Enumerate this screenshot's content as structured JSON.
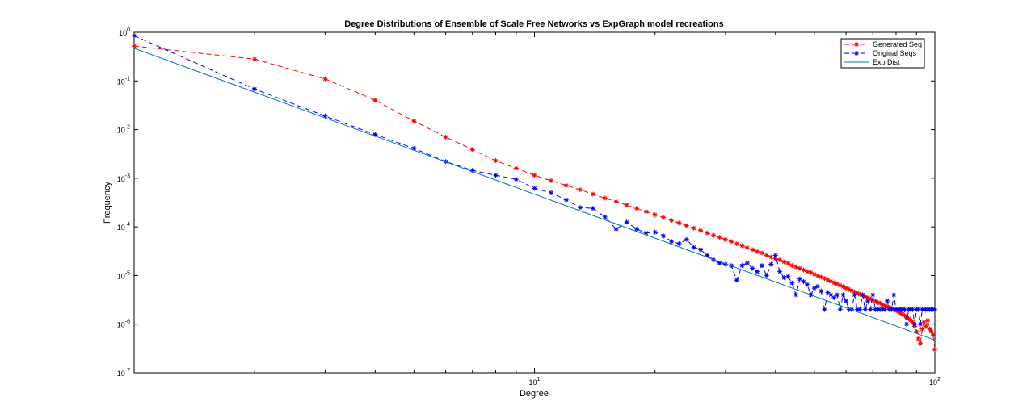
{
  "chart_data": {
    "type": "line",
    "title": "Degree Distributions of Ensemble of Scale Free Networks vs ExpGraph model recreations",
    "xlabel": "Degree",
    "ylabel": "Frequency",
    "xscale": "log",
    "yscale": "log",
    "xlim": [
      1,
      100
    ],
    "ylim": [
      1e-07,
      1
    ],
    "x_ticks": [
      {
        "value": 10,
        "base": "10",
        "exp": "1"
      },
      {
        "value": 100,
        "base": "10",
        "exp": "2"
      }
    ],
    "y_ticks": [
      {
        "value": 1,
        "base": "10",
        "exp": "0"
      },
      {
        "value": 0.1,
        "base": "10",
        "exp": "-1"
      },
      {
        "value": 0.01,
        "base": "10",
        "exp": "-2"
      },
      {
        "value": 0.001,
        "base": "10",
        "exp": "-3"
      },
      {
        "value": 0.0001,
        "base": "10",
        "exp": "-4"
      },
      {
        "value": 1e-05,
        "base": "10",
        "exp": "-5"
      },
      {
        "value": 1e-06,
        "base": "10",
        "exp": "-6"
      },
      {
        "value": 1e-07,
        "base": "10",
        "exp": "-7"
      }
    ],
    "grid": false,
    "legend_position": "top-right",
    "series": [
      {
        "name": "Generated Seq",
        "color": "#ff0000",
        "line": "dashed",
        "marker": "asterisk",
        "points": [
          [
            1,
            0.52
          ],
          [
            2,
            0.28
          ],
          [
            3,
            0.11
          ],
          [
            4,
            0.04
          ],
          [
            5,
            0.015
          ],
          [
            6,
            0.007
          ],
          [
            7,
            0.0039
          ],
          [
            8,
            0.0023
          ],
          [
            9,
            0.0016
          ],
          [
            10,
            0.00115
          ],
          [
            11,
            0.00089
          ],
          [
            12,
            0.00071
          ],
          [
            13,
            0.00058
          ],
          [
            14,
            0.00047
          ],
          [
            15,
            0.00039
          ],
          [
            16,
            0.00033
          ],
          [
            17,
            0.00028
          ],
          [
            18,
            0.00024
          ],
          [
            19,
            0.000205
          ],
          [
            20,
            0.000178
          ],
          [
            21,
            0.000155
          ],
          [
            22,
            0.000136
          ],
          [
            23,
            0.00012
          ],
          [
            24,
            0.000106
          ],
          [
            25,
            9.4e-05
          ],
          [
            26,
            8.4e-05
          ],
          [
            27,
            7.5e-05
          ],
          [
            28,
            6.7e-05
          ],
          [
            29,
            6.1e-05
          ],
          [
            30,
            5.5e-05
          ],
          [
            31,
            5e-05
          ],
          [
            32,
            4.5e-05
          ],
          [
            33,
            4.1e-05
          ],
          [
            34,
            3.7e-05
          ],
          [
            35,
            3.4e-05
          ],
          [
            36,
            3.1e-05
          ],
          [
            37,
            2.9e-05
          ],
          [
            38,
            2.6e-05
          ],
          [
            39,
            2.4e-05
          ],
          [
            40,
            2.2e-05
          ],
          [
            41,
            2.1e-05
          ],
          [
            42,
            1.9e-05
          ],
          [
            43,
            1.8e-05
          ],
          [
            44,
            1.6e-05
          ],
          [
            45,
            1.5e-05
          ],
          [
            46,
            1.4e-05
          ],
          [
            47,
            1.3e-05
          ],
          [
            48,
            1.2e-05
          ],
          [
            49,
            1.15e-05
          ],
          [
            50,
            1.06e-05
          ],
          [
            51,
            9.9e-06
          ],
          [
            52,
            9.3e-06
          ],
          [
            53,
            8.7e-06
          ],
          [
            54,
            8.1e-06
          ],
          [
            55,
            7.6e-06
          ],
          [
            56,
            7.1e-06
          ],
          [
            57,
            6.7e-06
          ],
          [
            58,
            6.3e-06
          ],
          [
            59,
            5.9e-06
          ],
          [
            60,
            5.5e-06
          ],
          [
            61,
            5.2e-06
          ],
          [
            62,
            4.9e-06
          ],
          [
            63,
            4.6e-06
          ],
          [
            64,
            4.4e-06
          ],
          [
            65,
            4.1e-06
          ],
          [
            66,
            3.9e-06
          ],
          [
            67,
            3.7e-06
          ],
          [
            68,
            3.5e-06
          ],
          [
            69,
            3.3e-06
          ],
          [
            70,
            3.1e-06
          ],
          [
            71,
            3e-06
          ],
          [
            72,
            2.8e-06
          ],
          [
            73,
            2.7e-06
          ],
          [
            74,
            2.5e-06
          ],
          [
            75,
            2.4e-06
          ],
          [
            76,
            2.3e-06
          ],
          [
            77,
            2.2e-06
          ],
          [
            78,
            2.1e-06
          ],
          [
            79,
            2e-06
          ],
          [
            80,
            1.9e-06
          ],
          [
            81,
            1.8e-06
          ],
          [
            82,
            1.7e-06
          ],
          [
            83,
            1.6e-06
          ],
          [
            84,
            1.5e-06
          ],
          [
            85,
            1.4e-06
          ],
          [
            86,
            1.3e-06
          ],
          [
            87,
            1.2e-06
          ],
          [
            88,
            1.1e-06
          ],
          [
            89,
            9e-07
          ],
          [
            90,
            7e-07
          ],
          [
            91,
            5e-07
          ],
          [
            92,
            4e-07
          ],
          [
            93,
            8e-07
          ],
          [
            94,
            1.1e-06
          ],
          [
            95,
            9e-07
          ],
          [
            96,
            1.2e-06
          ],
          [
            97,
            8e-07
          ],
          [
            98,
            7e-07
          ],
          [
            99,
            6e-07
          ],
          [
            100,
            3e-07
          ]
        ]
      },
      {
        "name": "Original Seqs",
        "color": "#0000ff",
        "line": "dashed",
        "marker": "asterisk",
        "points": [
          [
            1,
            0.85
          ],
          [
            2,
            0.068
          ],
          [
            3,
            0.019
          ],
          [
            4,
            0.0079
          ],
          [
            5,
            0.0041
          ],
          [
            6,
            0.0022
          ],
          [
            7,
            0.00145
          ],
          [
            8,
            0.00115
          ],
          [
            9,
            0.00095
          ],
          [
            10,
            0.00062
          ],
          [
            11,
            0.0005
          ],
          [
            12,
            0.00036
          ],
          [
            13,
            0.00025
          ],
          [
            14,
            0.00024
          ],
          [
            15,
            0.00016
          ],
          [
            16,
            9e-05
          ],
          [
            17,
            0.000125
          ],
          [
            18,
            9e-05
          ],
          [
            19,
            7.5e-05
          ],
          [
            20,
            7.8e-05
          ],
          [
            21,
            6.5e-05
          ],
          [
            22,
            5e-05
          ],
          [
            23,
            4.5e-05
          ],
          [
            24,
            5.5e-05
          ],
          [
            25,
            3.8e-05
          ],
          [
            26,
            3.4e-05
          ],
          [
            27,
            2.6e-05
          ],
          [
            28,
            2.1e-05
          ],
          [
            29,
            1.8e-05
          ],
          [
            30,
            1.7e-05
          ],
          [
            31,
            1.6e-05
          ],
          [
            32,
            8e-06
          ],
          [
            33,
            1.6e-05
          ],
          [
            34,
            1.8e-05
          ],
          [
            35,
            1.4e-05
          ],
          [
            36,
            1.2e-05
          ],
          [
            37,
            1.6e-05
          ],
          [
            38,
            1e-05
          ],
          [
            39,
            1.7e-05
          ],
          [
            40,
            2.6e-05
          ],
          [
            41,
            1.2e-05
          ],
          [
            42,
            9e-06
          ],
          [
            43,
            9.5e-06
          ],
          [
            44,
            7e-06
          ],
          [
            45,
            4e-06
          ],
          [
            46,
            8.5e-06
          ],
          [
            47,
            7.5e-06
          ],
          [
            48,
            6.5e-06
          ],
          [
            49,
            4e-06
          ],
          [
            50,
            5.5e-06
          ],
          [
            51,
            6e-06
          ],
          [
            52,
            4.8e-06
          ],
          [
            53,
            2e-06
          ],
          [
            54,
            4.5e-06
          ],
          [
            55,
            4e-06
          ],
          [
            56,
            3.5e-06
          ],
          [
            57,
            4e-06
          ],
          [
            58,
            2e-06
          ],
          [
            59,
            4e-06
          ],
          [
            60,
            3e-06
          ],
          [
            61,
            2e-06
          ],
          [
            62,
            2e-06
          ],
          [
            63,
            4e-06
          ],
          [
            64,
            2e-06
          ],
          [
            65,
            2e-06
          ],
          [
            66,
            4e-06
          ],
          [
            67,
            2e-06
          ],
          [
            68,
            3e-06
          ],
          [
            69,
            2e-06
          ],
          [
            70,
            4e-06
          ],
          [
            71,
            2e-06
          ],
          [
            72,
            2e-06
          ],
          [
            73,
            2e-06
          ],
          [
            74,
            2e-06
          ],
          [
            75,
            2e-06
          ],
          [
            76,
            3e-06
          ],
          [
            77,
            2e-06
          ],
          [
            78,
            2e-06
          ],
          [
            79,
            4e-06
          ],
          [
            80,
            2e-06
          ],
          [
            81,
            2e-06
          ],
          [
            82,
            2e-06
          ],
          [
            83,
            2e-06
          ],
          [
            84,
            2e-06
          ],
          [
            85,
            1e-06
          ],
          [
            86,
            2e-06
          ],
          [
            87,
            2e-06
          ],
          [
            88,
            2e-06
          ],
          [
            89,
            1e-06
          ],
          [
            90,
            2e-06
          ],
          [
            91,
            2e-06
          ],
          [
            92,
            1e-06
          ],
          [
            93,
            2e-06
          ],
          [
            94,
            2e-06
          ],
          [
            95,
            2e-06
          ],
          [
            96,
            2e-06
          ],
          [
            97,
            2e-06
          ],
          [
            98,
            2e-06
          ],
          [
            99,
            2e-06
          ],
          [
            100,
            2e-06
          ]
        ]
      },
      {
        "name": "Exp Dist",
        "color": "#0072bd",
        "line": "solid",
        "marker": "none",
        "points": [
          [
            1,
            0.47
          ],
          [
            100,
            4.7e-07
          ]
        ]
      }
    ]
  }
}
